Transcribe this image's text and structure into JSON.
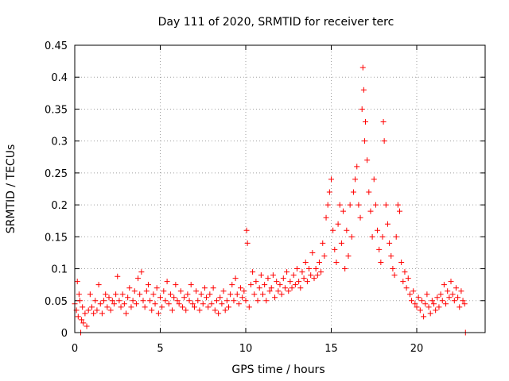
{
  "chart_data": {
    "type": "scatter",
    "title": "Day 111 of 2020, SRMTID for receiver terc",
    "xlabel": "GPS time / hours",
    "ylabel": "SRMTID / TECUs",
    "xlim": [
      0,
      24
    ],
    "ylim": [
      0,
      0.45
    ],
    "x_ticks": [
      0,
      5,
      10,
      15,
      20
    ],
    "y_ticks": [
      0,
      0.05,
      0.1,
      0.15,
      0.2,
      0.25,
      0.3,
      0.35,
      0.4,
      0.45
    ],
    "x_tick_labels": [
      "0",
      "5",
      "10",
      "15",
      "20"
    ],
    "y_tick_labels": [
      "0",
      "0.05",
      "0.1",
      "0.15",
      "0.2",
      "0.25",
      "0.3",
      "0.35",
      "0.4",
      "0.45"
    ],
    "grid": true,
    "marker": "+",
    "series": [
      {
        "name": "SRMTID",
        "color": "#ff0000",
        "points": [
          [
            0.0,
            0.045
          ],
          [
            0.1,
            0.035
          ],
          [
            0.15,
            0.08
          ],
          [
            0.2,
            0.025
          ],
          [
            0.25,
            0.06
          ],
          [
            0.3,
            0.05
          ],
          [
            0.35,
            0.0
          ],
          [
            0.4,
            0.02
          ],
          [
            0.45,
            0.04
          ],
          [
            0.5,
            0.015
          ],
          [
            0.6,
            0.03
          ],
          [
            0.7,
            0.01
          ],
          [
            0.8,
            0.035
          ],
          [
            0.9,
            0.06
          ],
          [
            1.0,
            0.04
          ],
          [
            1.1,
            0.03
          ],
          [
            1.2,
            0.05
          ],
          [
            1.3,
            0.035
          ],
          [
            1.4,
            0.075
          ],
          [
            1.5,
            0.045
          ],
          [
            1.6,
            0.03
          ],
          [
            1.7,
            0.05
          ],
          [
            1.8,
            0.06
          ],
          [
            1.9,
            0.04
          ],
          [
            2.0,
            0.055
          ],
          [
            2.1,
            0.035
          ],
          [
            2.2,
            0.05
          ],
          [
            2.3,
            0.045
          ],
          [
            2.4,
            0.06
          ],
          [
            2.5,
            0.088
          ],
          [
            2.6,
            0.05
          ],
          [
            2.7,
            0.04
          ],
          [
            2.8,
            0.06
          ],
          [
            2.9,
            0.045
          ],
          [
            3.0,
            0.03
          ],
          [
            3.1,
            0.055
          ],
          [
            3.2,
            0.07
          ],
          [
            3.3,
            0.04
          ],
          [
            3.4,
            0.05
          ],
          [
            3.5,
            0.065
          ],
          [
            3.6,
            0.045
          ],
          [
            3.7,
            0.085
          ],
          [
            3.8,
            0.06
          ],
          [
            3.9,
            0.095
          ],
          [
            4.0,
            0.05
          ],
          [
            4.1,
            0.04
          ],
          [
            4.2,
            0.065
          ],
          [
            4.3,
            0.075
          ],
          [
            4.4,
            0.05
          ],
          [
            4.5,
            0.035
          ],
          [
            4.6,
            0.06
          ],
          [
            4.7,
            0.045
          ],
          [
            4.8,
            0.07
          ],
          [
            4.9,
            0.03
          ],
          [
            5.0,
            0.055
          ],
          [
            5.1,
            0.04
          ],
          [
            5.2,
            0.065
          ],
          [
            5.3,
            0.05
          ],
          [
            5.4,
            0.08
          ],
          [
            5.5,
            0.045
          ],
          [
            5.6,
            0.06
          ],
          [
            5.7,
            0.035
          ],
          [
            5.8,
            0.055
          ],
          [
            5.9,
            0.075
          ],
          [
            6.0,
            0.05
          ],
          [
            6.1,
            0.045
          ],
          [
            6.2,
            0.065
          ],
          [
            6.3,
            0.04
          ],
          [
            6.4,
            0.055
          ],
          [
            6.5,
            0.035
          ],
          [
            6.6,
            0.06
          ],
          [
            6.7,
            0.05
          ],
          [
            6.8,
            0.075
          ],
          [
            6.9,
            0.045
          ],
          [
            7.0,
            0.04
          ],
          [
            7.1,
            0.065
          ],
          [
            7.2,
            0.05
          ],
          [
            7.3,
            0.035
          ],
          [
            7.4,
            0.06
          ],
          [
            7.5,
            0.045
          ],
          [
            7.6,
            0.07
          ],
          [
            7.7,
            0.055
          ],
          [
            7.8,
            0.04
          ],
          [
            7.9,
            0.06
          ],
          [
            8.0,
            0.045
          ],
          [
            8.1,
            0.07
          ],
          [
            8.2,
            0.035
          ],
          [
            8.3,
            0.05
          ],
          [
            8.4,
            0.03
          ],
          [
            8.5,
            0.055
          ],
          [
            8.6,
            0.045
          ],
          [
            8.7,
            0.065
          ],
          [
            8.8,
            0.035
          ],
          [
            8.9,
            0.05
          ],
          [
            9.0,
            0.04
          ],
          [
            9.1,
            0.06
          ],
          [
            9.2,
            0.075
          ],
          [
            9.3,
            0.05
          ],
          [
            9.4,
            0.085
          ],
          [
            9.5,
            0.06
          ],
          [
            9.6,
            0.045
          ],
          [
            9.7,
            0.07
          ],
          [
            9.8,
            0.055
          ],
          [
            9.9,
            0.065
          ],
          [
            10.0,
            0.05
          ],
          [
            10.05,
            0.16
          ],
          [
            10.1,
            0.14
          ],
          [
            10.2,
            0.04
          ],
          [
            10.3,
            0.075
          ],
          [
            10.4,
            0.095
          ],
          [
            10.5,
            0.06
          ],
          [
            10.6,
            0.08
          ],
          [
            10.7,
            0.05
          ],
          [
            10.8,
            0.07
          ],
          [
            10.9,
            0.09
          ],
          [
            11.0,
            0.06
          ],
          [
            11.1,
            0.075
          ],
          [
            11.2,
            0.05
          ],
          [
            11.3,
            0.085
          ],
          [
            11.4,
            0.065
          ],
          [
            11.5,
            0.07
          ],
          [
            11.6,
            0.09
          ],
          [
            11.7,
            0.055
          ],
          [
            11.8,
            0.08
          ],
          [
            11.9,
            0.065
          ],
          [
            12.0,
            0.075
          ],
          [
            12.1,
            0.06
          ],
          [
            12.2,
            0.085
          ],
          [
            12.3,
            0.07
          ],
          [
            12.4,
            0.095
          ],
          [
            12.5,
            0.065
          ],
          [
            12.6,
            0.08
          ],
          [
            12.7,
            0.07
          ],
          [
            12.8,
            0.09
          ],
          [
            12.9,
            0.075
          ],
          [
            13.0,
            0.1
          ],
          [
            13.1,
            0.08
          ],
          [
            13.2,
            0.07
          ],
          [
            13.3,
            0.095
          ],
          [
            13.4,
            0.085
          ],
          [
            13.5,
            0.11
          ],
          [
            13.6,
            0.08
          ],
          [
            13.7,
            0.1
          ],
          [
            13.8,
            0.09
          ],
          [
            13.9,
            0.125
          ],
          [
            14.0,
            0.085
          ],
          [
            14.1,
            0.1
          ],
          [
            14.2,
            0.09
          ],
          [
            14.3,
            0.11
          ],
          [
            14.4,
            0.095
          ],
          [
            14.5,
            0.14
          ],
          [
            14.6,
            0.12
          ],
          [
            14.7,
            0.18
          ],
          [
            14.8,
            0.2
          ],
          [
            14.9,
            0.22
          ],
          [
            15.0,
            0.24
          ],
          [
            15.1,
            0.16
          ],
          [
            15.2,
            0.13
          ],
          [
            15.3,
            0.11
          ],
          [
            15.4,
            0.17
          ],
          [
            15.5,
            0.2
          ],
          [
            15.6,
            0.14
          ],
          [
            15.7,
            0.19
          ],
          [
            15.8,
            0.1
          ],
          [
            15.9,
            0.16
          ],
          [
            16.0,
            0.12
          ],
          [
            16.1,
            0.2
          ],
          [
            16.2,
            0.15
          ],
          [
            16.3,
            0.22
          ],
          [
            16.4,
            0.24
          ],
          [
            16.5,
            0.26
          ],
          [
            16.6,
            0.2
          ],
          [
            16.7,
            0.18
          ],
          [
            16.8,
            0.35
          ],
          [
            16.85,
            0.415
          ],
          [
            16.9,
            0.38
          ],
          [
            16.95,
            0.3
          ],
          [
            17.0,
            0.33
          ],
          [
            17.1,
            0.27
          ],
          [
            17.2,
            0.22
          ],
          [
            17.3,
            0.19
          ],
          [
            17.4,
            0.15
          ],
          [
            17.5,
            0.24
          ],
          [
            17.6,
            0.2
          ],
          [
            17.7,
            0.16
          ],
          [
            17.8,
            0.13
          ],
          [
            17.9,
            0.11
          ],
          [
            18.0,
            0.15
          ],
          [
            18.05,
            0.33
          ],
          [
            18.1,
            0.3
          ],
          [
            18.2,
            0.2
          ],
          [
            18.3,
            0.17
          ],
          [
            18.4,
            0.14
          ],
          [
            18.5,
            0.12
          ],
          [
            18.6,
            0.1
          ],
          [
            18.7,
            0.09
          ],
          [
            18.8,
            0.15
          ],
          [
            18.9,
            0.2
          ],
          [
            19.0,
            0.19
          ],
          [
            19.1,
            0.11
          ],
          [
            19.2,
            0.08
          ],
          [
            19.3,
            0.095
          ],
          [
            19.4,
            0.07
          ],
          [
            19.5,
            0.085
          ],
          [
            19.6,
            0.06
          ],
          [
            19.7,
            0.05
          ],
          [
            19.8,
            0.065
          ],
          [
            19.9,
            0.045
          ],
          [
            20.0,
            0.04
          ],
          [
            20.1,
            0.055
          ],
          [
            20.2,
            0.035
          ],
          [
            20.3,
            0.05
          ],
          [
            20.4,
            0.025
          ],
          [
            20.5,
            0.045
          ],
          [
            20.6,
            0.06
          ],
          [
            20.7,
            0.04
          ],
          [
            20.8,
            0.03
          ],
          [
            20.9,
            0.05
          ],
          [
            21.0,
            0.045
          ],
          [
            21.1,
            0.035
          ],
          [
            21.2,
            0.055
          ],
          [
            21.3,
            0.04
          ],
          [
            21.4,
            0.06
          ],
          [
            21.5,
            0.05
          ],
          [
            21.6,
            0.075
          ],
          [
            21.7,
            0.045
          ],
          [
            21.8,
            0.065
          ],
          [
            21.9,
            0.055
          ],
          [
            22.0,
            0.08
          ],
          [
            22.1,
            0.06
          ],
          [
            22.2,
            0.05
          ],
          [
            22.3,
            0.07
          ],
          [
            22.4,
            0.055
          ],
          [
            22.5,
            0.04
          ],
          [
            22.6,
            0.065
          ],
          [
            22.7,
            0.05
          ],
          [
            22.8,
            0.045
          ],
          [
            22.85,
            0.0
          ]
        ]
      }
    ]
  }
}
